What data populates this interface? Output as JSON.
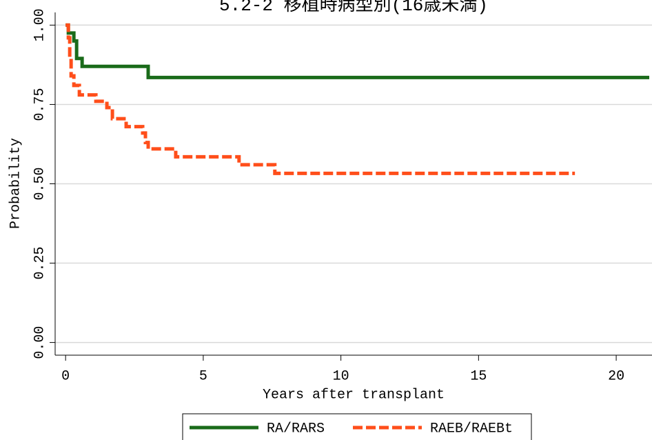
{
  "chart_data": {
    "type": "step",
    "title": "5.2-2 移植時病型別(16歳未満)",
    "x_label": "Years after transplant",
    "y_label": "Probability",
    "xlim": [
      -0.38,
      21.3
    ],
    "ylim": [
      -0.04,
      1.04
    ],
    "xticks": [
      0,
      5,
      10,
      15,
      20
    ],
    "yticks": [
      {
        "value": 0,
        "label": "0.00"
      },
      0.25,
      {
        "value": 0.5,
        "label": "0.50"
      },
      0.75,
      {
        "value": 1,
        "label": "1.00"
      }
    ],
    "grid": true,
    "legend": "bottom",
    "series": [
      {
        "name": "RA/RARS",
        "color": "#1a6b1a",
        "dash": false,
        "x": [
          0,
          0.1,
          0.3,
          0.4,
          0.6,
          3.0,
          21.2
        ],
        "values": [
          1,
          0.975,
          0.95,
          0.895,
          0.87,
          0.835,
          0.835
        ]
      },
      {
        "name": "RAEB/RAEBt",
        "color": "#ff4e1a",
        "dash": true,
        "x": [
          0,
          0.1,
          0.15,
          0.2,
          0.3,
          0.5,
          1.1,
          1.5,
          1.7,
          2.2,
          2.8,
          2.9,
          3.0,
          4.0,
          6.3,
          7.6,
          18.5
        ],
        "values": [
          1,
          0.96,
          0.9,
          0.84,
          0.81,
          0.78,
          0.76,
          0.74,
          0.705,
          0.68,
          0.66,
          0.63,
          0.61,
          0.585,
          0.56,
          0.533,
          0.533
        ]
      }
    ]
  }
}
